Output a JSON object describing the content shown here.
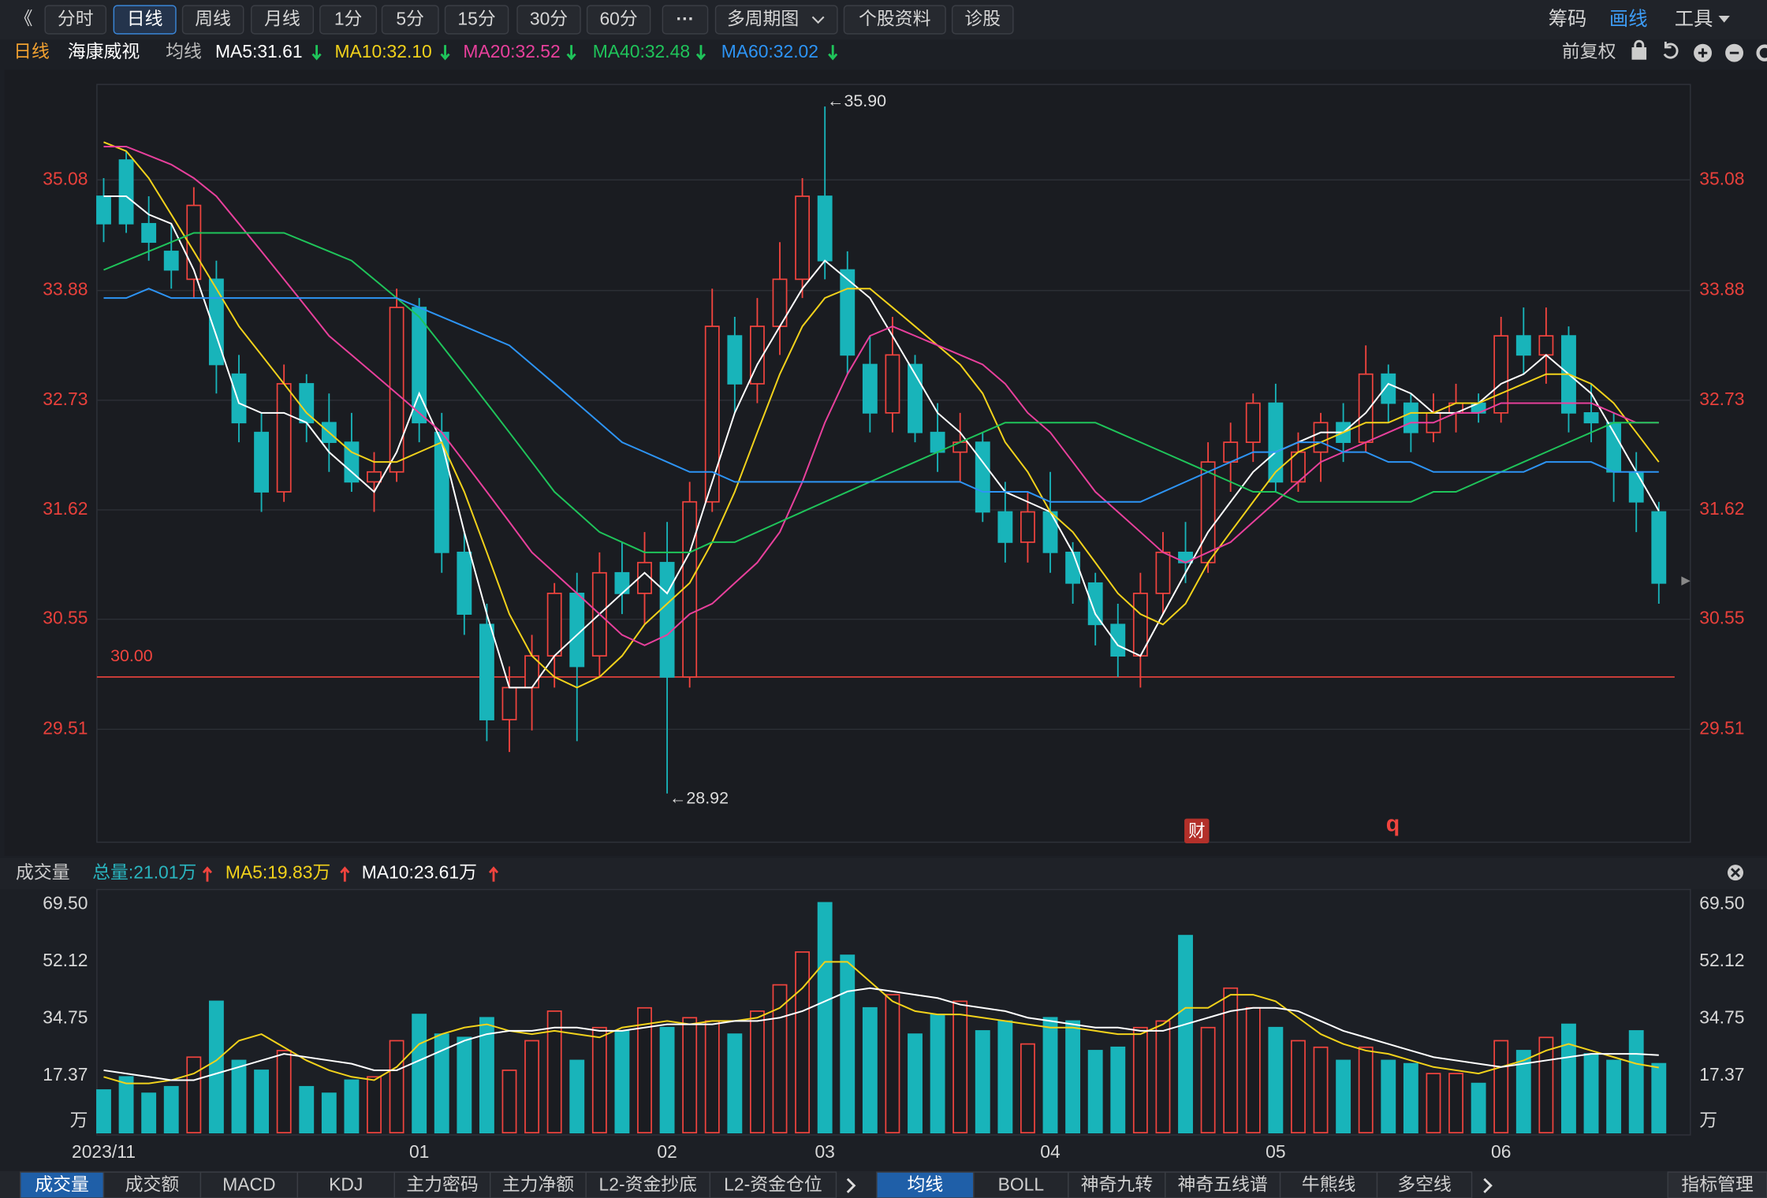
{
  "toolbar": {
    "buttons": [
      "《",
      "分时",
      "日线",
      "周线",
      "月线",
      "1分",
      "5分",
      "15分",
      "30分",
      "60分",
      "···",
      "多周期图",
      "个股资料",
      "诊股"
    ],
    "active": "日线",
    "right": [
      "筹码",
      "画线",
      "工具"
    ]
  },
  "info_bar": {
    "period": "日线",
    "stock": "海康威视",
    "ma_label": "均线",
    "adjust": "前复权"
  },
  "markers": {
    "cai": "财",
    "q": "q"
  },
  "chart_data": [
    {
      "type": "candlestick",
      "log": true,
      "grid": true,
      "ylim": [
        28.48,
        36.15
      ],
      "yticks": [
        29.51,
        30.55,
        31.62,
        32.73,
        33.88,
        35.08
      ],
      "up_color": "#f0443e",
      "down_color": "#18b4ba",
      "categories": [
        "2023/11",
        null,
        null,
        null,
        null,
        null,
        null,
        null,
        null,
        null,
        null,
        null,
        null,
        null,
        "01",
        null,
        null,
        null,
        null,
        null,
        null,
        null,
        null,
        null,
        null,
        "02",
        null,
        null,
        null,
        null,
        null,
        null,
        "03",
        null,
        null,
        null,
        null,
        null,
        null,
        null,
        null,
        null,
        "04",
        null,
        null,
        null,
        null,
        null,
        null,
        null,
        null,
        null,
        "05",
        null,
        null,
        null,
        null,
        null,
        null,
        null,
        null,
        null,
        "06",
        null,
        null,
        null,
        null,
        null,
        null,
        null
      ],
      "open": [
        34.9,
        35.3,
        34.6,
        34.3,
        34.0,
        34.0,
        33.0,
        32.4,
        31.8,
        32.9,
        32.5,
        32.3,
        31.9,
        32.0,
        33.7,
        32.4,
        31.2,
        30.5,
        29.6,
        29.9,
        30.2,
        30.8,
        30.2,
        31.0,
        30.8,
        31.1,
        30.0,
        31.7,
        33.4,
        32.9,
        33.5,
        34.0,
        34.9,
        34.1,
        33.1,
        32.6,
        33.1,
        32.4,
        32.2,
        32.3,
        31.6,
        31.3,
        31.6,
        31.2,
        30.9,
        30.5,
        30.2,
        30.8,
        31.2,
        31.1,
        32.1,
        32.3,
        32.7,
        31.9,
        32.2,
        32.5,
        32.3,
        33.0,
        32.7,
        32.4,
        32.6,
        32.7,
        32.6,
        33.4,
        33.2,
        33.4,
        32.6,
        32.5,
        32.0,
        31.6
      ],
      "high": [
        35.1,
        35.4,
        34.9,
        34.6,
        35.0,
        34.2,
        33.2,
        32.6,
        33.1,
        33.0,
        32.8,
        32.6,
        32.2,
        33.9,
        33.8,
        32.6,
        31.4,
        30.7,
        30.1,
        30.4,
        30.9,
        31.0,
        31.2,
        31.3,
        31.4,
        31.5,
        31.9,
        33.9,
        33.6,
        33.8,
        34.4,
        35.1,
        35.9,
        34.3,
        33.4,
        33.6,
        33.2,
        32.7,
        32.6,
        32.4,
        31.9,
        31.8,
        32.0,
        31.3,
        31.0,
        30.7,
        31.0,
        31.4,
        31.5,
        32.3,
        32.5,
        32.8,
        32.9,
        32.4,
        32.6,
        32.7,
        33.3,
        33.1,
        32.8,
        32.8,
        32.9,
        32.8,
        33.6,
        33.7,
        33.7,
        33.5,
        32.9,
        32.6,
        32.2,
        31.7
      ],
      "low": [
        34.4,
        34.5,
        34.2,
        33.9,
        33.8,
        32.8,
        32.3,
        31.6,
        31.7,
        32.3,
        32.0,
        31.8,
        31.6,
        31.9,
        32.3,
        31.0,
        30.4,
        29.4,
        29.3,
        29.5,
        29.9,
        29.4,
        30.0,
        30.6,
        30.5,
        28.92,
        29.9,
        31.6,
        32.6,
        32.7,
        33.2,
        33.8,
        34.0,
        33.0,
        32.4,
        32.4,
        32.3,
        32.0,
        31.9,
        31.5,
        31.1,
        31.1,
        31.0,
        30.7,
        30.3,
        30.0,
        29.9,
        30.6,
        30.9,
        31.0,
        31.8,
        32.1,
        31.8,
        31.8,
        31.9,
        32.1,
        32.2,
        32.5,
        32.2,
        32.3,
        32.4,
        32.5,
        32.5,
        33.0,
        32.9,
        32.4,
        32.3,
        31.7,
        31.4,
        30.7
      ],
      "close": [
        34.6,
        34.6,
        34.4,
        34.1,
        34.8,
        33.1,
        32.5,
        31.8,
        32.9,
        32.5,
        32.3,
        31.9,
        32.0,
        33.7,
        32.5,
        31.2,
        30.6,
        29.6,
        29.9,
        30.2,
        30.8,
        30.1,
        31.0,
        30.8,
        31.1,
        30.0,
        31.7,
        33.5,
        32.9,
        33.5,
        34.0,
        34.9,
        34.2,
        33.2,
        32.6,
        33.2,
        32.4,
        32.2,
        32.3,
        31.6,
        31.3,
        31.6,
        31.2,
        30.9,
        30.5,
        30.2,
        30.8,
        31.2,
        31.1,
        32.1,
        32.3,
        32.7,
        31.9,
        32.2,
        32.5,
        32.3,
        33.0,
        32.7,
        32.4,
        32.6,
        32.7,
        32.6,
        33.4,
        33.2,
        33.4,
        32.6,
        32.5,
        32.0,
        31.7,
        30.9
      ],
      "series": [
        {
          "name": "MA5:31.61",
          "color": "#ffffff",
          "values": [
            34.9,
            34.9,
            34.7,
            34.6,
            34.1,
            33.4,
            32.7,
            32.6,
            32.6,
            32.5,
            32.2,
            32.0,
            31.8,
            32.2,
            32.8,
            32.3,
            31.4,
            30.6,
            29.9,
            29.9,
            30.2,
            30.4,
            30.6,
            30.8,
            31.0,
            30.8,
            31.2,
            31.9,
            32.6,
            33.1,
            33.5,
            33.9,
            34.2,
            34.0,
            33.8,
            33.4,
            33.0,
            32.6,
            32.4,
            32.1,
            31.8,
            31.7,
            31.6,
            31.2,
            30.6,
            30.3,
            30.2,
            30.6,
            31.0,
            31.4,
            31.7,
            32.0,
            32.2,
            32.3,
            32.4,
            32.4,
            32.6,
            32.9,
            32.8,
            32.6,
            32.6,
            32.7,
            32.9,
            33.0,
            33.2,
            33.0,
            32.8,
            32.4,
            32.0,
            31.61
          ]
        },
        {
          "name": "MA10:32.10",
          "color": "#f2d21b",
          "values": [
            35.5,
            35.4,
            35.1,
            34.7,
            34.3,
            33.9,
            33.5,
            33.2,
            32.9,
            32.6,
            32.4,
            32.2,
            32.1,
            32.1,
            32.2,
            32.3,
            31.8,
            31.2,
            30.6,
            30.2,
            30.0,
            29.9,
            30.0,
            30.2,
            30.5,
            30.7,
            30.9,
            31.3,
            31.8,
            32.4,
            33.0,
            33.5,
            33.8,
            33.9,
            33.9,
            33.7,
            33.5,
            33.3,
            33.1,
            32.8,
            32.3,
            32.0,
            31.6,
            31.4,
            31.1,
            30.8,
            30.6,
            30.5,
            30.7,
            31.1,
            31.4,
            31.7,
            32.0,
            32.2,
            32.3,
            32.4,
            32.5,
            32.5,
            32.6,
            32.6,
            32.7,
            32.7,
            32.8,
            32.9,
            33.0,
            33.0,
            32.9,
            32.7,
            32.4,
            32.1
          ]
        },
        {
          "name": "MA20:32.52",
          "color": "#e8409c",
          "values": [
            35.45,
            35.45,
            35.35,
            35.25,
            35.1,
            34.9,
            34.6,
            34.3,
            34.0,
            33.7,
            33.4,
            33.2,
            33.0,
            32.8,
            32.6,
            32.4,
            32.1,
            31.8,
            31.5,
            31.2,
            31.0,
            30.8,
            30.6,
            30.4,
            30.3,
            30.4,
            30.6,
            30.7,
            30.9,
            31.1,
            31.4,
            31.9,
            32.5,
            33.0,
            33.4,
            33.5,
            33.4,
            33.3,
            33.2,
            33.1,
            32.9,
            32.6,
            32.4,
            32.1,
            31.8,
            31.6,
            31.4,
            31.2,
            31.1,
            31.2,
            31.3,
            31.5,
            31.7,
            31.9,
            32.1,
            32.2,
            32.3,
            32.4,
            32.5,
            32.5,
            32.6,
            32.6,
            32.7,
            32.7,
            32.7,
            32.7,
            32.7,
            32.6,
            32.5,
            32.5
          ]
        },
        {
          "name": "MA40:32.48",
          "color": "#1fc45a",
          "values": [
            34.1,
            34.2,
            34.3,
            34.4,
            34.5,
            34.5,
            34.5,
            34.5,
            34.5,
            34.4,
            34.3,
            34.2,
            34.0,
            33.8,
            33.6,
            33.3,
            33.0,
            32.7,
            32.4,
            32.1,
            31.8,
            31.6,
            31.4,
            31.3,
            31.2,
            31.2,
            31.2,
            31.3,
            31.3,
            31.4,
            31.5,
            31.6,
            31.7,
            31.8,
            31.9,
            32.0,
            32.1,
            32.2,
            32.3,
            32.4,
            32.5,
            32.5,
            32.5,
            32.5,
            32.5,
            32.4,
            32.3,
            32.2,
            32.1,
            32.0,
            31.9,
            31.8,
            31.8,
            31.7,
            31.7,
            31.7,
            31.7,
            31.7,
            31.7,
            31.8,
            31.8,
            31.9,
            32.0,
            32.1,
            32.2,
            32.3,
            32.4,
            32.5,
            32.5,
            32.5
          ]
        },
        {
          "name": "MA60:32.02",
          "color": "#2d94f5",
          "values": [
            33.8,
            33.8,
            33.9,
            33.8,
            33.8,
            33.8,
            33.8,
            33.8,
            33.8,
            33.8,
            33.8,
            33.8,
            33.8,
            33.8,
            33.7,
            33.6,
            33.5,
            33.4,
            33.3,
            33.1,
            32.9,
            32.7,
            32.5,
            32.3,
            32.2,
            32.1,
            32.0,
            32.0,
            31.9,
            31.9,
            31.9,
            31.9,
            31.9,
            31.9,
            31.9,
            31.9,
            31.9,
            31.9,
            31.9,
            31.8,
            31.8,
            31.8,
            31.7,
            31.7,
            31.7,
            31.7,
            31.7,
            31.8,
            31.9,
            32.0,
            32.1,
            32.2,
            32.2,
            32.3,
            32.3,
            32.2,
            32.2,
            32.1,
            32.1,
            32.0,
            32.0,
            32.0,
            32.0,
            32.0,
            32.1,
            32.1,
            32.1,
            32.0,
            32.0,
            32.0
          ]
        }
      ],
      "ref_line": {
        "value": 30,
        "label": "30.00",
        "color": "#f0443e"
      },
      "high_label": "←35.90",
      "low_label": "←28.92"
    },
    {
      "type": "bar",
      "title": "成交量",
      "total": "总量:21.01万",
      "ylim": [
        0,
        73
      ],
      "yticks": [
        {
          "value": 0,
          "label": "万"
        },
        17.37,
        34.75,
        52.12,
        {
          "value": 69.5,
          "label": "69.50"
        }
      ],
      "values": [
        13,
        17,
        12,
        14,
        23,
        40,
        22,
        19,
        25,
        14,
        12,
        16,
        17,
        28,
        36,
        30,
        29,
        35,
        19,
        28,
        37,
        22,
        32,
        31,
        38,
        32,
        35,
        34,
        30,
        37,
        45,
        55,
        70,
        54,
        38,
        42,
        30,
        36,
        40,
        31,
        34,
        27,
        35,
        34,
        25,
        26,
        32,
        34,
        60,
        32,
        44,
        38,
        32,
        28,
        26,
        22,
        26,
        22,
        21,
        18,
        18,
        15,
        28,
        25,
        29,
        33,
        24,
        22,
        31,
        21.01
      ],
      "series": [
        {
          "name": "MA5:19.83万",
          "color": "#f2d21b",
          "values": [
            17,
            15,
            15,
            16,
            18,
            22,
            28,
            30,
            26,
            22,
            19,
            17,
            16,
            20,
            27,
            30,
            32,
            33,
            31,
            30,
            31,
            30,
            29,
            32,
            33,
            34,
            33,
            34,
            34,
            35,
            38,
            44,
            52,
            52,
            46,
            40,
            37,
            36,
            36,
            35,
            34,
            33,
            32,
            32,
            31,
            30,
            30,
            33,
            38,
            38,
            42,
            42,
            40,
            35,
            30,
            27,
            25,
            24,
            22,
            20,
            19,
            18,
            20,
            22,
            25,
            27,
            25,
            23,
            21,
            19.83
          ]
        },
        {
          "name": "MA10:23.61万",
          "color": "#ffffff",
          "values": [
            19,
            18,
            17,
            16,
            16,
            18,
            20,
            22,
            24,
            23,
            22,
            21,
            19,
            19,
            22,
            25,
            28,
            30,
            31,
            31,
            32,
            32,
            31,
            31,
            32,
            33,
            33,
            33,
            34,
            34,
            35,
            37,
            40,
            43,
            44,
            43,
            42,
            41,
            39,
            38,
            37,
            35,
            34,
            33,
            32,
            32,
            31,
            31,
            33,
            35,
            37,
            38,
            38,
            37,
            34,
            31,
            29,
            27,
            25,
            23,
            22,
            21,
            20,
            21,
            22,
            23,
            24,
            24,
            24,
            23.61
          ]
        }
      ]
    }
  ],
  "bottom_tabs": {
    "left": [
      "成交量",
      "成交额",
      "MACD",
      "KDJ",
      "主力密码",
      "主力净额",
      "L2-资金抄底",
      "L2-资金仓位"
    ],
    "right": [
      "均线",
      "BOLL",
      "神奇九转",
      "神奇五线谱",
      "牛熊线",
      "多空线"
    ],
    "active_left": "成交量",
    "active_right": "均线",
    "manage": "指标管理"
  }
}
